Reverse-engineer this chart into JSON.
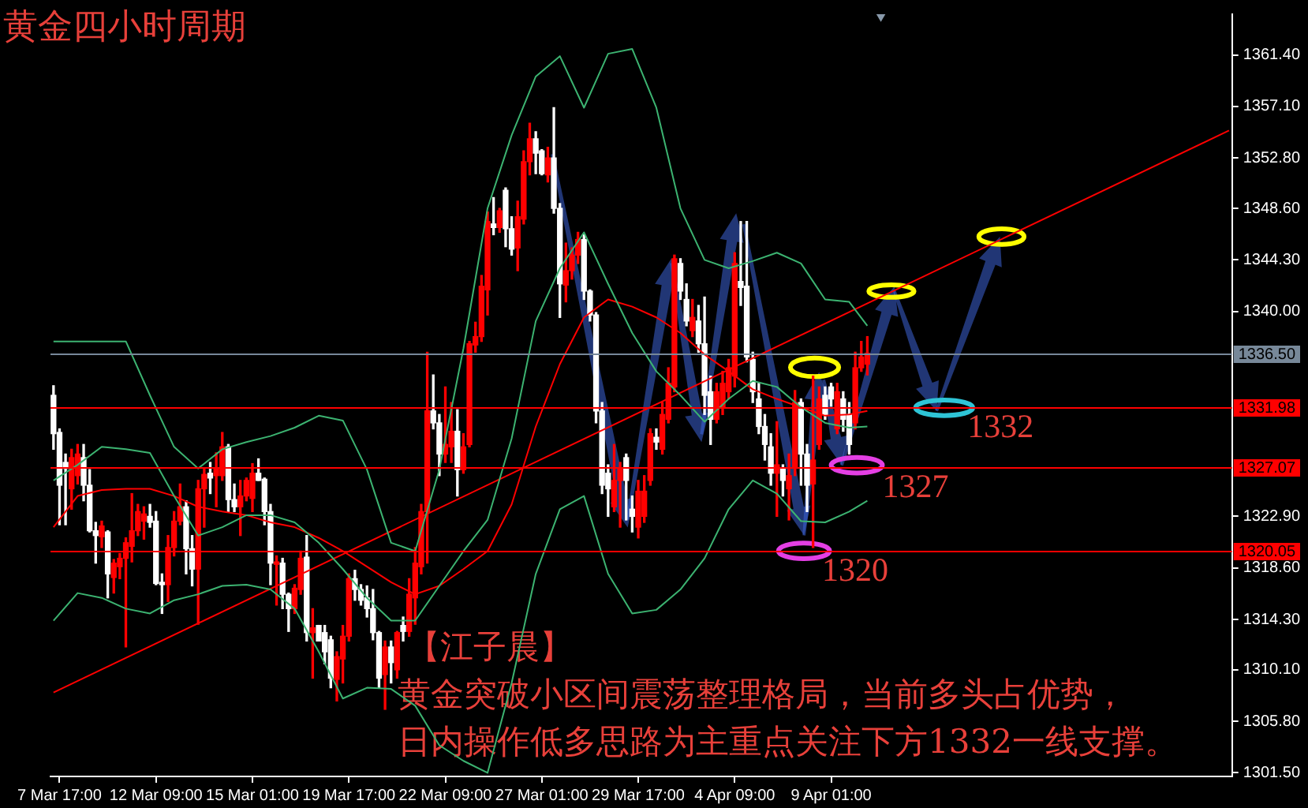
{
  "chart_data": {
    "type": "candlestick",
    "title": "黄金四小时周期",
    "categories": [
      null,
      "7 Mar 17:00",
      null,
      null,
      null,
      null,
      null,
      null,
      null,
      null,
      null,
      null,
      null,
      null,
      null,
      null,
      null,
      "12 Mar 09:00",
      null,
      null,
      null,
      null,
      null,
      null,
      null,
      null,
      null,
      null,
      null,
      null,
      null,
      null,
      null,
      "15 Mar 01:00",
      null,
      null,
      null,
      null,
      null,
      null,
      null,
      null,
      null,
      null,
      null,
      null,
      null,
      null,
      null,
      "19 Mar 17:00",
      null,
      null,
      null,
      null,
      null,
      null,
      null,
      null,
      null,
      null,
      null,
      null,
      null,
      null,
      null,
      "22 Mar 09:00",
      null,
      null,
      null,
      null,
      null,
      null,
      null,
      null,
      null,
      null,
      null,
      null,
      null,
      null,
      null,
      "27 Mar 01:00",
      null,
      null,
      null,
      null,
      null,
      null,
      null,
      null,
      null,
      null,
      null,
      null,
      null,
      null,
      null,
      "29 Mar 17:00",
      null,
      null,
      null,
      null,
      null,
      null,
      null,
      null,
      null,
      null,
      null,
      null,
      null,
      null,
      null,
      "4 Apr 09:00",
      null,
      null,
      null,
      null,
      null,
      null,
      null,
      null,
      null,
      null,
      null,
      null,
      null,
      null,
      null,
      "9 Apr 01:00",
      null,
      null,
      null,
      null,
      null,
      null,
      null,
      null,
      null,
      null,
      null,
      null,
      null,
      null,
      null,
      null,
      null,
      null,
      null,
      null,
      null,
      null,
      null,
      null,
      null,
      null,
      null,
      null,
      null,
      null,
      null,
      null,
      null,
      null,
      null,
      null,
      null,
      null,
      null,
      null,
      null,
      null,
      null,
      null,
      null,
      null,
      null,
      null,
      null,
      null,
      null,
      null,
      null,
      null,
      null,
      null,
      null,
      null,
      null,
      null,
      null,
      null,
      null,
      null,
      null,
      null
    ],
    "ohlc": [
      [
        1333.0,
        1333.8,
        1328.5,
        1329.8
      ],
      [
        1329.9,
        1330.2,
        1322.2,
        1325.5
      ],
      [
        1327.4,
        1328.1,
        1322.2,
        1326.9
      ],
      [
        1325.2,
        1328.5,
        1323.5,
        1327.8
      ],
      [
        1326.3,
        1328.9,
        1325.6,
        1328.1
      ],
      [
        1327.8,
        1328.9,
        1324.2,
        1325.5
      ],
      [
        1325.5,
        1326.8,
        1321.6,
        1321.7
      ],
      [
        1321.7,
        1322.4,
        1319.0,
        1321.3
      ],
      [
        1321.2,
        1322.5,
        1320.3,
        1322.1
      ],
      [
        1321.6,
        1321.7,
        1316.1,
        1318.1
      ],
      [
        1317.8,
        1319.3,
        1316.5,
        1319.0
      ],
      [
        1318.7,
        1319.8,
        1317.7,
        1319.4
      ],
      [
        1319.4,
        1321.1,
        1312.0,
        1320.7
      ],
      [
        1320.4,
        1324.8,
        1319.1,
        1321.7
      ],
      [
        1321.7,
        1323.9,
        1321.3,
        1323.3
      ],
      [
        1322.5,
        1323.7,
        1321.0,
        1323.1
      ],
      [
        1322.9,
        1323.9,
        1322.0,
        1322.4
      ],
      [
        1322.5,
        1323.3,
        1317.2,
        1317.3
      ],
      [
        1317.4,
        1318.1,
        1314.8,
        1317.2
      ],
      [
        1317.2,
        1321.3,
        1315.8,
        1320.3
      ],
      [
        1320.3,
        1323.3,
        1319.6,
        1322.5
      ],
      [
        1322.5,
        1325.6,
        1322.2,
        1323.7
      ],
      [
        1323.7,
        1324.2,
        1318.1,
        1320.2
      ],
      [
        1320.2,
        1321.3,
        1317.1,
        1318.5
      ],
      [
        1318.5,
        1325.9,
        1313.9,
        1325.2
      ],
      [
        1325.2,
        1326.9,
        1322.0,
        1326.4
      ],
      [
        1326.5,
        1327.4,
        1324.8,
        1326.1
      ],
      [
        1326.3,
        1328.2,
        1323.7,
        1326.9
      ],
      [
        1326.3,
        1329.9,
        1325.9,
        1328.7
      ],
      [
        1328.7,
        1328.9,
        1323.3,
        1324.3
      ],
      [
        1324.3,
        1325.6,
        1323.3,
        1323.7
      ],
      [
        1323.7,
        1325.9,
        1321.3,
        1324.6
      ],
      [
        1324.6,
        1326.1,
        1324.2,
        1325.9
      ],
      [
        1324.4,
        1327.3,
        1323.3,
        1326.5
      ],
      [
        1326.5,
        1327.7,
        1325.9,
        1325.9
      ],
      [
        1326.0,
        1326.1,
        1322.2,
        1323.3
      ],
      [
        1323.3,
        1323.9,
        1317.2,
        1319.0
      ],
      [
        1318.9,
        1319.6,
        1315.5,
        1319.1
      ],
      [
        1319.0,
        1319.4,
        1315.2,
        1316.4
      ],
      [
        1316.4,
        1316.5,
        1313.3,
        1315.2
      ],
      [
        1315.2,
        1317.2,
        1314.8,
        1316.9
      ],
      [
        1316.8,
        1320.0,
        1316.4,
        1319.4
      ],
      [
        1319.5,
        1321.3,
        1312.5,
        1313.2
      ],
      [
        1313.2,
        1315.2,
        1309.4,
        1313.6
      ],
      [
        1313.8,
        1313.8,
        1312.5,
        1312.5
      ],
      [
        1313.2,
        1313.8,
        1310.6,
        1311.6
      ],
      [
        1312.6,
        1312.9,
        1308.6,
        1309.4
      ],
      [
        1309.3,
        1311.6,
        1307.5,
        1311.2
      ],
      [
        1311.0,
        1313.8,
        1309.0,
        1312.9
      ],
      [
        1312.9,
        1318.1,
        1312.5,
        1317.7
      ],
      [
        1317.7,
        1318.4,
        1315.9,
        1316.8
      ],
      [
        1316.8,
        1317.2,
        1315.5,
        1315.9
      ],
      [
        1316.1,
        1317.1,
        1314.5,
        1315.2
      ],
      [
        1315.2,
        1316.8,
        1312.6,
        1313.2
      ],
      [
        1313.2,
        1313.3,
        1308.6,
        1309.4
      ],
      [
        1309.7,
        1312.5,
        1306.8,
        1312.0
      ],
      [
        1312.0,
        1312.5,
        1309.0,
        1310.7
      ],
      [
        1310.1,
        1313.3,
        1309.4,
        1313.2
      ],
      [
        1313.8,
        1314.5,
        1312.5,
        1313.3
      ],
      [
        1313.3,
        1317.7,
        1312.9,
        1316.4
      ],
      [
        1316.1,
        1320.3,
        1313.9,
        1319.0
      ],
      [
        1318.7,
        1323.9,
        1318.1,
        1323.3
      ],
      [
        1323.3,
        1336.6,
        1319.0,
        1331.7
      ],
      [
        1331.7,
        1334.7,
        1330.2,
        1330.7
      ],
      [
        1330.7,
        1331.4,
        1326.3,
        1328.1
      ],
      [
        1328.1,
        1333.7,
        1327.4,
        1328.9
      ],
      [
        1328.7,
        1332.4,
        1327.4,
        1330.0
      ],
      [
        1330.0,
        1331.8,
        1324.6,
        1326.8
      ],
      [
        1326.8,
        1329.8,
        1326.5,
        1328.7
      ],
      [
        1328.9,
        1337.5,
        1328.7,
        1337.3
      ],
      [
        1337.2,
        1339.1,
        1336.6,
        1337.9
      ],
      [
        1337.9,
        1343.0,
        1337.5,
        1342.1
      ],
      [
        1341.8,
        1348.3,
        1339.7,
        1347.5
      ],
      [
        1347.3,
        1349.5,
        1346.4,
        1347.0
      ],
      [
        1347.0,
        1348.6,
        1346.6,
        1348.4
      ],
      [
        1350.1,
        1350.3,
        1345.4,
        1346.9
      ],
      [
        1346.9,
        1347.9,
        1344.7,
        1345.2
      ],
      [
        1345.3,
        1349.2,
        1343.4,
        1347.9
      ],
      [
        1347.7,
        1353.4,
        1347.3,
        1352.5
      ],
      [
        1352.5,
        1355.7,
        1351.4,
        1354.4
      ],
      [
        1354.4,
        1355.0,
        1351.5,
        1353.2
      ],
      [
        1353.4,
        1353.5,
        1351.4,
        1351.5
      ],
      [
        1351.4,
        1353.7,
        1350.8,
        1352.8
      ],
      [
        1352.8,
        1357.0,
        1348.2,
        1348.6
      ],
      [
        1348.6,
        1349.0,
        1339.5,
        1342.3
      ],
      [
        1342.2,
        1345.7,
        1340.8,
        1343.4
      ],
      [
        1343.4,
        1345.3,
        1342.7,
        1344.7
      ],
      [
        1344.7,
        1346.6,
        1344.0,
        1346.0
      ],
      [
        1346.0,
        1346.4,
        1341.0,
        1341.7
      ],
      [
        1341.7,
        1341.8,
        1339.2,
        1339.7
      ],
      [
        1339.7,
        1339.9,
        1330.7,
        1331.7
      ],
      [
        1331.7,
        1332.4,
        1324.8,
        1325.5
      ],
      [
        1326.5,
        1327.2,
        1322.9,
        1325.2
      ],
      [
        1323.7,
        1328.9,
        1323.3,
        1325.9
      ],
      [
        1325.9,
        1327.4,
        1322.0,
        1326.9
      ],
      [
        1327.8,
        1328.1,
        1322.6,
        1325.9
      ],
      [
        1323.5,
        1324.6,
        1321.6,
        1322.9
      ],
      [
        1322.0,
        1325.9,
        1321.1,
        1325.0
      ],
      [
        1322.9,
        1326.3,
        1322.4,
        1325.0
      ],
      [
        1325.9,
        1330.2,
        1325.5,
        1329.8
      ],
      [
        1329.5,
        1330.2,
        1328.5,
        1329.1
      ],
      [
        1328.5,
        1332.4,
        1328.1,
        1331.4
      ],
      [
        1331.0,
        1335.3,
        1330.7,
        1334.0
      ],
      [
        1333.7,
        1344.7,
        1333.3,
        1344.4
      ],
      [
        1344.0,
        1344.4,
        1341.0,
        1341.7
      ],
      [
        1341.0,
        1342.3,
        1338.8,
        1339.2
      ],
      [
        1338.4,
        1341.0,
        1337.9,
        1339.5
      ],
      [
        1339.2,
        1340.5,
        1336.6,
        1337.3
      ],
      [
        1337.3,
        1341.2,
        1331.4,
        1333.0
      ],
      [
        1333.3,
        1334.6,
        1328.9,
        1331.0
      ],
      [
        1331.0,
        1334.0,
        1330.7,
        1333.3
      ],
      [
        1332.0,
        1335.0,
        1331.4,
        1334.0
      ],
      [
        1333.3,
        1336.0,
        1332.7,
        1335.3
      ],
      [
        1334.6,
        1344.9,
        1333.7,
        1344.0
      ],
      [
        1342.5,
        1347.5,
        1340.5,
        1342.0
      ],
      [
        1342.1,
        1347.5,
        1335.8,
        1336.2
      ],
      [
        1336.0,
        1336.6,
        1332.4,
        1333.3
      ],
      [
        1332.7,
        1334.0,
        1329.8,
        1330.4
      ],
      [
        1330.4,
        1331.4,
        1327.6,
        1328.9
      ],
      [
        1328.7,
        1329.8,
        1325.5,
        1326.5
      ],
      [
        1326.5,
        1330.8,
        1322.9,
        1327.2
      ],
      [
        1326.9,
        1327.2,
        1324.6,
        1325.9
      ],
      [
        1325.2,
        1328.1,
        1322.6,
        1326.3
      ],
      [
        1326.9,
        1333.4,
        1326.3,
        1332.4
      ],
      [
        1332.4,
        1332.7,
        1325.5,
        1328.1
      ],
      [
        1328.1,
        1328.9,
        1323.3,
        1325.5
      ],
      [
        1325.6,
        1334.6,
        1320.3,
        1327.6
      ],
      [
        1328.9,
        1333.7,
        1328.5,
        1332.7
      ],
      [
        1333.0,
        1333.7,
        1331.0,
        1331.4
      ],
      [
        1333.7,
        1334.0,
        1332.1,
        1332.7
      ],
      [
        1330.2,
        1334.0,
        1329.8,
        1333.3
      ],
      [
        1332.7,
        1333.3,
        1330.0,
        1331.0
      ],
      [
        1331.4,
        1332.4,
        1328.1,
        1328.9
      ],
      [
        1330.7,
        1336.6,
        1330.2,
        1335.3
      ],
      [
        1335.3,
        1337.5,
        1335.0,
        1336.2
      ],
      [
        1335.6,
        1337.9,
        1334.7,
        1336.5
      ],
      null,
      null,
      null,
      null,
      null,
      null,
      null,
      null,
      null,
      null,
      null,
      null,
      null,
      null,
      null,
      null,
      null,
      null,
      null,
      null,
      null,
      null,
      null,
      null,
      null,
      null,
      null,
      null,
      null,
      null,
      null,
      null,
      null,
      null,
      null,
      null,
      null,
      null,
      null,
      null,
      null,
      null,
      null,
      null,
      null,
      null,
      null,
      null,
      null,
      null,
      null,
      null,
      null,
      null,
      null,
      null,
      null,
      null,
      null,
      null
    ],
    "colors": [
      "#ffffff",
      "#ffffff",
      "#ffffff",
      "#ff0000",
      "#ff0000",
      "#ffffff",
      "#ffffff",
      "#ffffff",
      "#ff0000",
      "#ffffff",
      "#ff0000",
      "#ff0000",
      "#ff0000",
      "#ff0000",
      "#ff0000",
      "#ff0000",
      "#ffffff",
      "#ffffff",
      "#ffffff",
      "#ff0000",
      "#ff0000",
      "#ff0000",
      "#ffffff",
      "#ffffff",
      "#ff0000",
      "#ff0000",
      "#ffffff",
      "#ff0000",
      "#ff0000",
      "#ffffff",
      "#ffffff",
      "#ff0000",
      "#ff0000",
      "#ff0000",
      "#ffffff",
      "#ffffff",
      "#ffffff",
      "#ff0000",
      "#ffffff",
      "#ffffff",
      "#ff0000",
      "#ff0000",
      "#ffffff",
      "#ff0000",
      "#ffffff",
      "#ffffff",
      "#ffffff",
      "#ff0000",
      "#ff0000",
      "#ff0000",
      "#ffffff",
      "#ffffff",
      "#ffffff",
      "#ffffff",
      "#ffffff",
      "#ff0000",
      "#ffffff",
      "#ff0000",
      "#ffffff",
      "#ff0000",
      "#ff0000",
      "#ff0000",
      "#ff0000",
      "#ffffff",
      "#ffffff",
      "#ff0000",
      "#ff0000",
      "#ffffff",
      "#ff0000",
      "#ff0000",
      "#ff0000",
      "#ff0000",
      "#ff0000",
      "#ffffff",
      "#ff0000",
      "#ffffff",
      "#ffffff",
      "#ff0000",
      "#ff0000",
      "#ff0000",
      "#ffffff",
      "#ffffff",
      "#ff0000",
      "#ffffff",
      "#ffffff",
      "#ff0000",
      "#ff0000",
      "#ff0000",
      "#ffffff",
      "#ffffff",
      "#ffffff",
      "#ffffff",
      "#ffffff",
      "#ff0000",
      "#ff0000",
      "#ffffff",
      "#ffffff",
      "#ff0000",
      "#ff0000",
      "#ff0000",
      "#ffffff",
      "#ff0000",
      "#ff0000",
      "#ff0000",
      "#ffffff",
      "#ffffff",
      "#ff0000",
      "#ffffff",
      "#ffffff",
      "#ffffff",
      "#ff0000",
      "#ff0000",
      "#ff0000",
      "#ff0000",
      "#ffffff",
      "#ffffff",
      "#ffffff",
      "#ffffff",
      "#ffffff",
      "#ffffff",
      "#ff0000",
      "#ffffff",
      "#ff0000",
      "#ff0000",
      "#ffffff",
      "#ffffff",
      "#ff0000",
      "#ff0000",
      "#ffffff",
      "#ffffff",
      "#ff0000",
      "#ffffff",
      "#ffffff",
      "#ff0000",
      "#ff0000",
      "#ff0000",
      null,
      null,
      null,
      null,
      null,
      null,
      null,
      null,
      null,
      null,
      null,
      null,
      null,
      null,
      null,
      null,
      null,
      null,
      null,
      null,
      null,
      null,
      null,
      null,
      null,
      null,
      null,
      null,
      null,
      null,
      null,
      null,
      null,
      null,
      null,
      null,
      null,
      null,
      null,
      null,
      null,
      null,
      null,
      null,
      null,
      null,
      null,
      null,
      null,
      null,
      null,
      null,
      null,
      null,
      null,
      null,
      null,
      null,
      null,
      null
    ],
    "series": [
      {
        "type": "line",
        "color": "#3cb371",
        "values": [
          1337.5,
          null,
          null,
          null,
          1337.5,
          null,
          null,
          null,
          1337.5,
          null,
          null,
          null,
          1337.5,
          null,
          null,
          null,
          1333.0,
          null,
          null,
          null,
          1328.7,
          null,
          null,
          null,
          1326.9,
          null,
          null,
          null,
          1328.5,
          null,
          null,
          null,
          1329.1,
          null,
          null,
          null,
          1329.6,
          null,
          null,
          null,
          1330.3,
          null,
          null,
          null,
          1331.3,
          null,
          null,
          null,
          1330.9,
          null,
          null,
          null,
          1326.8,
          null,
          null,
          null,
          1320.7,
          null,
          null,
          null,
          1320.0,
          null,
          null,
          null,
          1326.8,
          null,
          null,
          null,
          1336.9,
          null,
          null,
          null,
          1348.6,
          null,
          null,
          null,
          1354.7,
          null,
          null,
          null,
          1359.6,
          null,
          null,
          null,
          1361.3,
          null,
          null,
          null,
          1357.0,
          null,
          null,
          null,
          1361.5,
          null,
          null,
          null,
          1361.9,
          null,
          null,
          null,
          1357.0,
          null,
          null,
          null,
          1348.6,
          null,
          null,
          null,
          1344.3,
          null,
          null,
          null,
          1343.6,
          null,
          null,
          null,
          1344.2,
          null,
          null,
          null,
          1344.9,
          null,
          null,
          null,
          1344.0,
          null,
          null,
          null,
          1341.0,
          null,
          null,
          null,
          1340.8,
          null,
          null,
          1338.8,
          null,
          null,
          null,
          null,
          null,
          null,
          null,
          null,
          null,
          null,
          null,
          null,
          null,
          null,
          null,
          null,
          null,
          null,
          null,
          null,
          null,
          null,
          null,
          null,
          null,
          null,
          null,
          null,
          null,
          null,
          null,
          null,
          null,
          null,
          null,
          null,
          null,
          null,
          null,
          null,
          null,
          null,
          null,
          null,
          null,
          null,
          null,
          null,
          null,
          null,
          null,
          null,
          null,
          null,
          null,
          null,
          null,
          null,
          null,
          null
        ]
      },
      {
        "type": "line",
        "color": "#3cb371",
        "values": [
          1325.9,
          null,
          null,
          null,
          1327.2,
          null,
          null,
          null,
          1328.7,
          null,
          null,
          null,
          1328.5,
          null,
          null,
          null,
          1328.2,
          null,
          null,
          null,
          1324.6,
          null,
          null,
          null,
          1321.3,
          null,
          null,
          null,
          1322.0,
          null,
          null,
          null,
          1323.0,
          null,
          null,
          null,
          1323.0,
          null,
          null,
          null,
          1322.4,
          null,
          null,
          null,
          1320.7,
          null,
          null,
          null,
          1318.5,
          null,
          null,
          null,
          1316.1,
          null,
          null,
          null,
          1314.2,
          null,
          null,
          null,
          1314.2,
          null,
          null,
          null,
          1317.1,
          null,
          null,
          null,
          1320.0,
          null,
          null,
          null,
          1322.6,
          null,
          null,
          null,
          1329.4,
          null,
          null,
          null,
          1339.2,
          null,
          null,
          null,
          1343.6,
          null,
          null,
          null,
          1346.6,
          null,
          null,
          null,
          1342.3,
          null,
          null,
          null,
          1338.2,
          null,
          null,
          null,
          1335.0,
          null,
          null,
          null,
          1333.0,
          null,
          null,
          null,
          1330.8,
          null,
          null,
          null,
          1332.7,
          null,
          null,
          null,
          1334.2,
          null,
          null,
          null,
          1333.7,
          null,
          null,
          null,
          1332.0,
          null,
          null,
          null,
          1330.7,
          null,
          null,
          null,
          1330.3,
          null,
          null,
          1330.4,
          null,
          null,
          null,
          null,
          null,
          null,
          null,
          null,
          null,
          null,
          null,
          null,
          null,
          null,
          null,
          null,
          null,
          null,
          null,
          null,
          null,
          null,
          null,
          null,
          null,
          null,
          null,
          null,
          null,
          null,
          null,
          null,
          null,
          null,
          null,
          null,
          null,
          null,
          null,
          null,
          null,
          null,
          null,
          null,
          null,
          null,
          null,
          null,
          null,
          null,
          null,
          null,
          null,
          null,
          null,
          null,
          null,
          null,
          null,
          null
        ]
      },
      {
        "type": "line",
        "color": "#3cb371",
        "values": [
          1314.2,
          null,
          null,
          null,
          1316.5,
          null,
          null,
          null,
          1316.1,
          null,
          null,
          null,
          1315.2,
          null,
          null,
          null,
          1314.8,
          null,
          null,
          null,
          1315.9,
          null,
          null,
          null,
          1316.4,
          null,
          null,
          null,
          1317.1,
          null,
          null,
          null,
          1317.2,
          null,
          null,
          null,
          1316.8,
          null,
          null,
          null,
          1315.2,
          null,
          null,
          null,
          1311.6,
          null,
          null,
          null,
          1307.7,
          null,
          null,
          null,
          1308.6,
          null,
          null,
          null,
          1308.5,
          null,
          null,
          null,
          1307.1,
          null,
          null,
          null,
          1303.8,
          null,
          null,
          null,
          1302.5,
          null,
          null,
          null,
          1301.5,
          null,
          null,
          null,
          1309.0,
          null,
          null,
          null,
          1318.1,
          null,
          null,
          null,
          1323.5,
          null,
          null,
          null,
          1324.6,
          null,
          null,
          null,
          1318.1,
          null,
          null,
          null,
          1314.8,
          null,
          null,
          null,
          1315.1,
          null,
          null,
          null,
          1316.8,
          null,
          null,
          null,
          1319.4,
          null,
          null,
          null,
          1323.5,
          null,
          null,
          null,
          1325.9,
          null,
          null,
          null,
          1324.8,
          null,
          null,
          null,
          1322.5,
          null,
          null,
          null,
          1322.4,
          null,
          null,
          null,
          1323.3,
          null,
          null,
          1324.2,
          null,
          null,
          null,
          null,
          null,
          null,
          null,
          null,
          null,
          null,
          null,
          null,
          null,
          null,
          null,
          null,
          null,
          null,
          null,
          null,
          null,
          null,
          null,
          null,
          null,
          null,
          null,
          null,
          null,
          null,
          null,
          null,
          null,
          null,
          null,
          null,
          null,
          null,
          null,
          null,
          null,
          null,
          null,
          null,
          null,
          null,
          null,
          null,
          null,
          null,
          null,
          null,
          null,
          null,
          null,
          null,
          null,
          null,
          null,
          null
        ]
      },
      {
        "type": "line",
        "color": "#ff0000",
        "values": [
          1322.0,
          null,
          null,
          null,
          1324.6,
          null,
          null,
          null,
          1325.1,
          null,
          null,
          null,
          1325.2,
          null,
          null,
          null,
          1325.2,
          null,
          null,
          null,
          1324.6,
          null,
          null,
          null,
          1323.7,
          null,
          null,
          null,
          1323.3,
          null,
          null,
          null,
          1323.0,
          null,
          null,
          null,
          1322.4,
          null,
          null,
          null,
          1322.0,
          null,
          null,
          null,
          1321.1,
          null,
          null,
          null,
          1320.0,
          null,
          null,
          null,
          1318.7,
          null,
          null,
          null,
          1317.4,
          null,
          null,
          null,
          1316.4,
          null,
          null,
          null,
          1317.1,
          null,
          null,
          null,
          1318.5,
          null,
          null,
          null,
          1320.0,
          null,
          null,
          null,
          1323.9,
          null,
          null,
          null,
          1330.4,
          null,
          null,
          null,
          1335.6,
          null,
          null,
          null,
          1339.5,
          null,
          null,
          null,
          1341.0,
          null,
          null,
          null,
          1340.4,
          null,
          null,
          null,
          1339.5,
          null,
          null,
          null,
          1338.2,
          null,
          null,
          null,
          1336.4,
          null,
          null,
          null,
          1335.0,
          null,
          null,
          null,
          1333.5,
          null,
          null,
          null,
          1332.7,
          null,
          null,
          null,
          1332.0,
          null,
          null,
          null,
          1331.3,
          null,
          null,
          null,
          1331.4,
          null,
          null,
          1331.7,
          null,
          null,
          null,
          null,
          null,
          null,
          null,
          null,
          null,
          null,
          null,
          null,
          null,
          null,
          null,
          null,
          null,
          null,
          null,
          null,
          null,
          null,
          null,
          null,
          null,
          null,
          null,
          null,
          null,
          null,
          null,
          null,
          null,
          null,
          null,
          null,
          null,
          null,
          null,
          null,
          null,
          null,
          null,
          null,
          null,
          null,
          null,
          null,
          null,
          null,
          null,
          null,
          null,
          null,
          null,
          null,
          null,
          null,
          null,
          null
        ]
      },
      {
        "type": "line",
        "color": "#ff0000",
        "values": [
          1308.2,
          null,
          null,
          null,
          null,
          null,
          null,
          null,
          null,
          null,
          null,
          null,
          null,
          null,
          null,
          null,
          null,
          null,
          null,
          null,
          null,
          null,
          null,
          null,
          null,
          null,
          null,
          null,
          null,
          null,
          null,
          null,
          null,
          null,
          null,
          null,
          null,
          null,
          null,
          null,
          null,
          null,
          null,
          null,
          null,
          null,
          null,
          null,
          null,
          null,
          null,
          null,
          null,
          null,
          null,
          null,
          null,
          null,
          null,
          null,
          null,
          null,
          null,
          null,
          null,
          null,
          null,
          null,
          null,
          null,
          null,
          null,
          null,
          null,
          null,
          null,
          null,
          null,
          null,
          null,
          null,
          null,
          null,
          null,
          null,
          null,
          null,
          null,
          null,
          null,
          null,
          null,
          null,
          null,
          null,
          null,
          null,
          null,
          null,
          null,
          null,
          null,
          null,
          null,
          null,
          null,
          null,
          null,
          null,
          null,
          null,
          null,
          null,
          null,
          null,
          null,
          null,
          null,
          null,
          null,
          null,
          null,
          null,
          null,
          null,
          null,
          null,
          null,
          null,
          null,
          null,
          null,
          null,
          null,
          null,
          null,
          null,
          null,
          null,
          null,
          null,
          null,
          null,
          null,
          null,
          null,
          null,
          null,
          null,
          null,
          null,
          null,
          null,
          null,
          null,
          null,
          null,
          null,
          null,
          null,
          null,
          null,
          null,
          null,
          null,
          null,
          null,
          null,
          null,
          null,
          null,
          null,
          null,
          null,
          null,
          null,
          null,
          null,
          null,
          null,
          null,
          null,
          null,
          null,
          null,
          null,
          null,
          null,
          null,
          null,
          null,
          null,
          null,
          null,
          null,
          1355.1
        ]
      }
    ],
    "ref_lines": [
      {
        "axis": "y",
        "value": 1336.5,
        "label": "1336.50",
        "color": "#778899"
      },
      {
        "axis": "y",
        "value": 1331.98,
        "label": "1331.98",
        "color": "#ff0000"
      },
      {
        "axis": "y",
        "value": 1327.07,
        "label": "1327.07",
        "color": "#ff0000"
      },
      {
        "axis": "y",
        "value": 1320.05,
        "label": "1320.05",
        "color": "#ff0000"
      }
    ],
    "annotations": [
      {
        "text": "1320",
        "y": 1320
      },
      {
        "text": "1327",
        "y": 1327
      },
      {
        "text": "1332",
        "y": 1332
      },
      "【江子晨】",
      "黄金突破小区间震荡整理格局，当前多头占优势，",
      "日内操作低多思路为主重点关注下方1332一线支撑。"
    ],
    "ylim": [
      1301.2,
      1364.8
    ],
    "yticks": [
      {
        "value": 1361.4,
        "label": "1361.40"
      },
      {
        "value": 1357.1,
        "label": "1357.10"
      },
      {
        "value": 1352.8,
        "label": "1352.80"
      },
      {
        "value": 1348.6,
        "label": "1348.60"
      },
      {
        "value": 1344.3,
        "label": "1344.30"
      },
      {
        "value": 1340.0,
        "label": "1340.00"
      },
      {
        "value": 1322.9,
        "label": "1322.90"
      },
      {
        "value": 1318.6,
        "label": "1318.60"
      },
      {
        "value": 1314.3,
        "label": "1314.30"
      },
      {
        "value": 1310.1,
        "label": "1310.10"
      },
      {
        "value": 1305.8,
        "label": "1305.80"
      },
      {
        "value": 1301.5,
        "label": "1301.50"
      }
    ]
  }
}
